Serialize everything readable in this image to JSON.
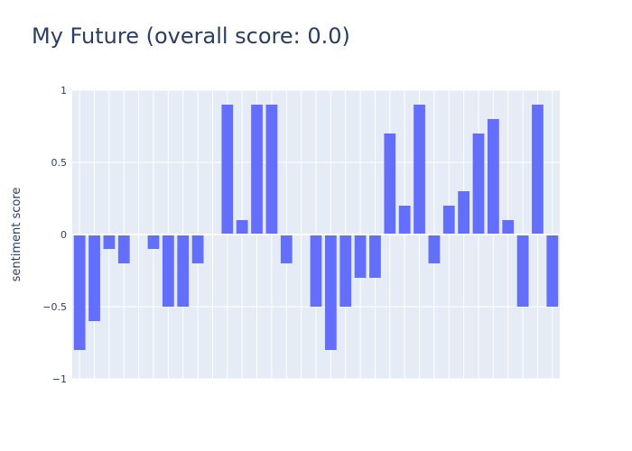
{
  "chart_data": {
    "type": "bar",
    "title": "My Future (overall score: 0.0)",
    "xlabel": "",
    "ylabel": "sentiment score",
    "ylim": [
      -1,
      1
    ],
    "yticks": [
      1,
      0.5,
      0,
      -0.5,
      -1
    ],
    "ytick_labels": [
      "1",
      "0.5",
      "0",
      "−0.5",
      "−1"
    ],
    "grid": true,
    "values": [
      -0.8,
      -0.6,
      -0.1,
      -0.2,
      0,
      -0.1,
      -0.5,
      -0.5,
      -0.2,
      0,
      0.9,
      0.1,
      0.9,
      0.9,
      -0.2,
      0,
      -0.5,
      -0.8,
      -0.5,
      -0.3,
      -0.3,
      0.7,
      0.2,
      0.9,
      -0.2,
      0.2,
      0.3,
      0.7,
      0.8,
      0.1,
      -0.5,
      0.9,
      -0.5
    ],
    "colors": {
      "bar": "#636efa",
      "plot_bg": "#e5ecf6",
      "grid": "#ffffff",
      "text": "#2a3f5f"
    }
  }
}
